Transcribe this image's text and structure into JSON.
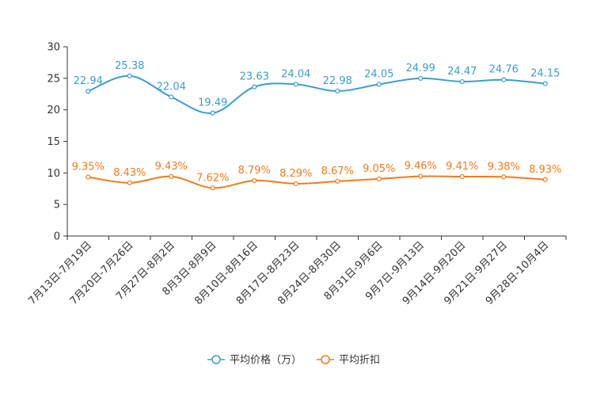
{
  "chart_data": {
    "type": "line",
    "title": "",
    "xlabel": "",
    "ylabel": "",
    "ylim": [
      0,
      30
    ],
    "yticks": [
      0,
      5,
      10,
      15,
      20,
      25,
      30
    ],
    "categories": [
      "7月13日-7月19日",
      "7月20日-7月26日",
      "7月27日-8月2日",
      "8月3日-8月9日",
      "8月10日-8月16日",
      "8月17日-8月23日",
      "8月24日-8月30日",
      "8月31日-9月6日",
      "9月7日-9月13日",
      "9月14日-9月20日",
      "9月21日-9月27日",
      "9月28日-10月4日"
    ],
    "series": [
      {
        "name": "平均价格（万）",
        "color": "#3c9dcd",
        "values": [
          22.94,
          25.38,
          22.04,
          19.49,
          23.63,
          24.04,
          22.98,
          24.05,
          24.99,
          24.47,
          24.76,
          24.15
        ],
        "labels": [
          "22.94",
          "25.38",
          "22.04",
          "19.49",
          "23.63",
          "24.04",
          "22.98",
          "24.05",
          "24.99",
          "24.47",
          "24.76",
          "24.15"
        ]
      },
      {
        "name": "平均折扣",
        "color": "#f37b1d",
        "values": [
          9.35,
          8.43,
          9.43,
          7.62,
          8.79,
          8.29,
          8.67,
          9.05,
          9.46,
          9.41,
          9.38,
          8.93
        ],
        "labels": [
          "9.35%",
          "8.43%",
          "9.43%",
          "7.62%",
          "8.79%",
          "8.29%",
          "8.67%",
          "9.05%",
          "9.46%",
          "9.41%",
          "9.38%",
          "8.93%"
        ]
      }
    ],
    "grid": false,
    "legend_position": "bottom-center"
  }
}
